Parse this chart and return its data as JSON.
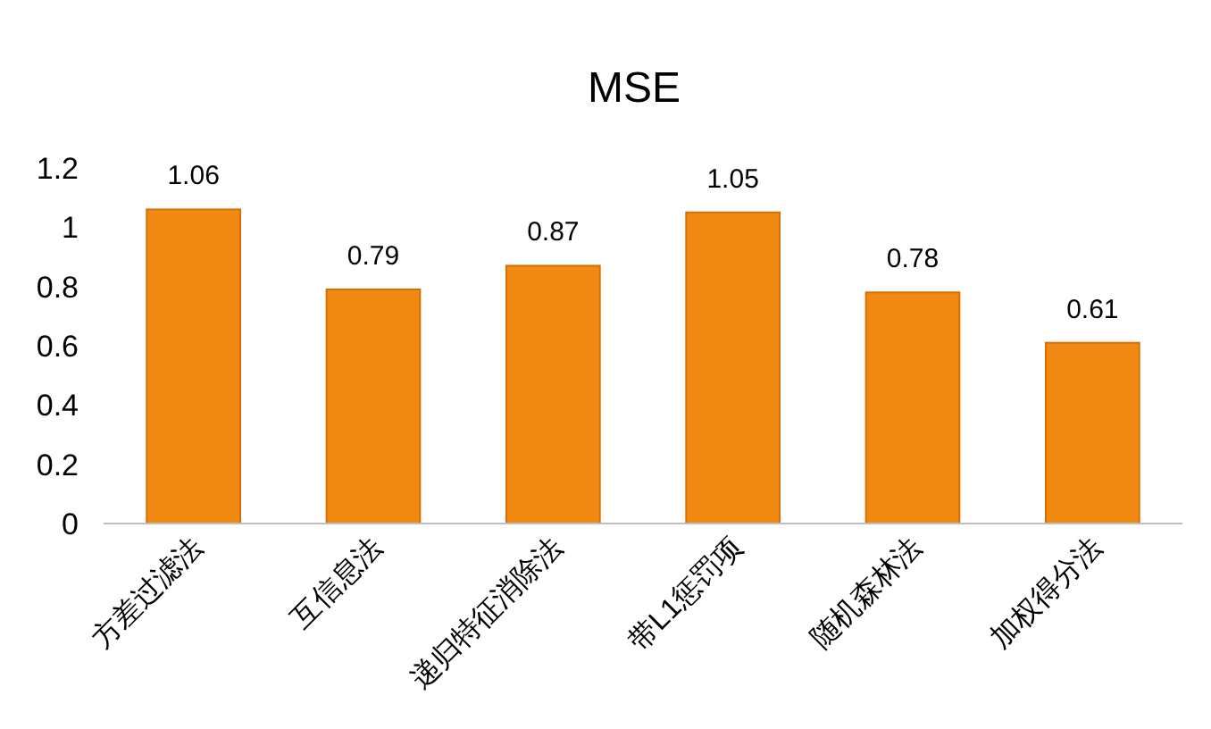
{
  "chart_data": {
    "type": "bar",
    "title": "MSE",
    "categories": [
      "方差过滤法",
      "互信息法",
      "递归特征消除法",
      "带L1惩罚项",
      "随机森林法",
      "加权得分法"
    ],
    "values": [
      1.06,
      0.79,
      0.87,
      1.05,
      0.78,
      0.61
    ],
    "color": "#f08a12",
    "ylim": [
      0,
      1.2
    ],
    "yticks": [
      0,
      0.2,
      0.4,
      0.6,
      0.8,
      1,
      1.2
    ],
    "data_labels": true,
    "grid": false
  }
}
